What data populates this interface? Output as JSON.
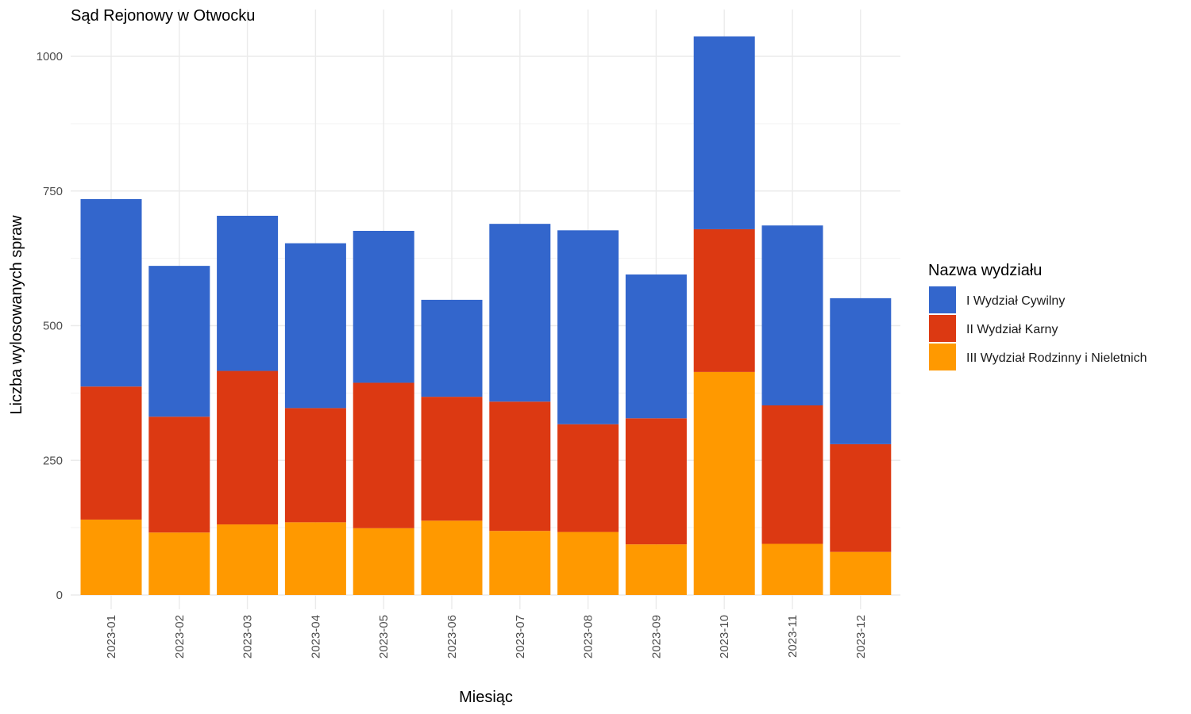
{
  "chart_data": {
    "type": "bar",
    "stacked": true,
    "title": "Sąd Rejonowy w Otwocku",
    "xlabel": "Miesiąc",
    "ylabel": "Liczba wylosowanych spraw",
    "ylim": [
      0,
      1060
    ],
    "yticks": [
      "0",
      "250",
      "500",
      "750",
      "1000"
    ],
    "ytick_values": [
      0,
      250,
      500,
      750,
      1000
    ],
    "grid": true,
    "legend_position": "right",
    "legend_title": "Nazwa wydziału",
    "categories": [
      "2023-01",
      "2023-02",
      "2023-03",
      "2023-04",
      "2023-05",
      "2023-06",
      "2023-07",
      "2023-08",
      "2023-09",
      "2023-10",
      "2023-11",
      "2023-12"
    ],
    "series": [
      {
        "name": "I Wydział Cywilny",
        "color": "#3366cc",
        "values": [
          348,
          280,
          288,
          306,
          282,
          180,
          330,
          360,
          267,
          358,
          334,
          271
        ]
      },
      {
        "name": "II Wydział Karny",
        "color": "#dc3912",
        "values": [
          247,
          215,
          285,
          212,
          270,
          230,
          240,
          200,
          234,
          265,
          257,
          200
        ]
      },
      {
        "name": "III Wydział Rodzinny i Nieletnich",
        "color": "#ff9900",
        "values": [
          140,
          116,
          131,
          135,
          124,
          138,
          119,
          117,
          94,
          414,
          95,
          80
        ]
      }
    ]
  }
}
